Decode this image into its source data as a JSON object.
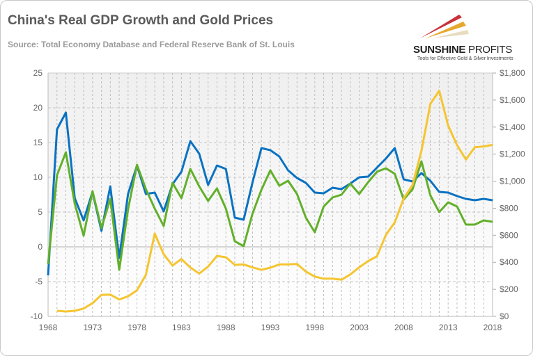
{
  "header": {
    "title": "China's Real GDP Growth and Gold Prices",
    "subtitle": "Source: Total Economy Database and Federal Reserve Bank of St. Louis"
  },
  "logo": {
    "name_bold": "SUNSHINE",
    "name_light": "PROFITS",
    "tagline": "Tools for Effective Gold & Silver Investments"
  },
  "chart_data": {
    "type": "line",
    "title": "China's Real GDP Growth and Gold Prices",
    "x": [
      1968,
      1969,
      1970,
      1971,
      1972,
      1973,
      1974,
      1975,
      1976,
      1977,
      1978,
      1979,
      1980,
      1981,
      1982,
      1983,
      1984,
      1985,
      1986,
      1987,
      1988,
      1989,
      1990,
      1991,
      1992,
      1993,
      1994,
      1995,
      1996,
      1997,
      1998,
      1999,
      2000,
      2001,
      2002,
      2003,
      2004,
      2005,
      2006,
      2007,
      2008,
      2009,
      2010,
      2011,
      2012,
      2013,
      2014,
      2015,
      2016,
      2017,
      2018
    ],
    "xticks": [
      "1968",
      "1973",
      "1978",
      "1983",
      "1988",
      "1993",
      "1998",
      "2003",
      "2008",
      "2013",
      "2018"
    ],
    "xlim": [
      1968,
      2018
    ],
    "ylim_left": [
      -10,
      25
    ],
    "yticks_left": [
      "-10",
      "-5",
      "0",
      "5",
      "10",
      "15",
      "20",
      "25"
    ],
    "ylim_right": [
      0,
      1800
    ],
    "yticks_right": [
      "$0",
      "$200",
      "$400",
      "$600",
      "$800",
      "$1,000",
      "$1,200",
      "$1,400",
      "$1,600",
      "$1,800"
    ],
    "grid": true,
    "series": [
      {
        "name": "Real GDP growth (blue)",
        "axis": "left",
        "color": "#0a72c2",
        "values": [
          -4.1,
          16.9,
          19.3,
          7.0,
          3.8,
          7.9,
          2.3,
          8.7,
          -1.6,
          7.6,
          11.7,
          7.6,
          7.8,
          5.1,
          9.0,
          10.8,
          15.2,
          13.4,
          8.9,
          11.7,
          11.2,
          4.2,
          3.9,
          9.3,
          14.2,
          13.9,
          13.0,
          11.0,
          9.9,
          9.2,
          7.8,
          7.7,
          8.5,
          8.3,
          9.1,
          10.0,
          10.1,
          11.4,
          12.7,
          14.2,
          9.7,
          9.4,
          10.6,
          9.5,
          7.9,
          7.8,
          7.3,
          6.9,
          6.7,
          6.9,
          6.7
        ]
      },
      {
        "name": "Real GDP growth (green)",
        "axis": "left",
        "color": "#62b02a",
        "values": [
          -2.5,
          10.3,
          13.6,
          6.2,
          1.6,
          8.0,
          2.7,
          6.9,
          -3.3,
          5.4,
          11.8,
          8.3,
          5.5,
          3.0,
          9.2,
          7.0,
          11.2,
          8.7,
          6.6,
          8.4,
          5.5,
          0.8,
          0.1,
          4.8,
          8.2,
          11.0,
          8.8,
          9.5,
          7.6,
          4.2,
          2.1,
          5.8,
          7.1,
          7.5,
          9.1,
          7.6,
          9.3,
          10.8,
          11.3,
          10.5,
          6.8,
          8.3,
          12.3,
          7.4,
          5.0,
          6.4,
          5.8,
          3.2,
          3.2,
          3.8,
          3.6
        ]
      },
      {
        "name": "Gold price (USD)",
        "axis": "right",
        "color": "#f5c531",
        "values": [
          null,
          41,
          36,
          41,
          58,
          97,
          159,
          161,
          125,
          148,
          193,
          307,
          612,
          460,
          376,
          424,
          361,
          317,
          368,
          447,
          437,
          381,
          384,
          362,
          344,
          360,
          384,
          384,
          388,
          331,
          294,
          279,
          279,
          271,
          310,
          363,
          409,
          445,
          603,
          695,
          872,
          972,
          1225,
          1572,
          1669,
          1411,
          1266,
          1160,
          1251,
          1257,
          1268
        ]
      }
    ]
  }
}
